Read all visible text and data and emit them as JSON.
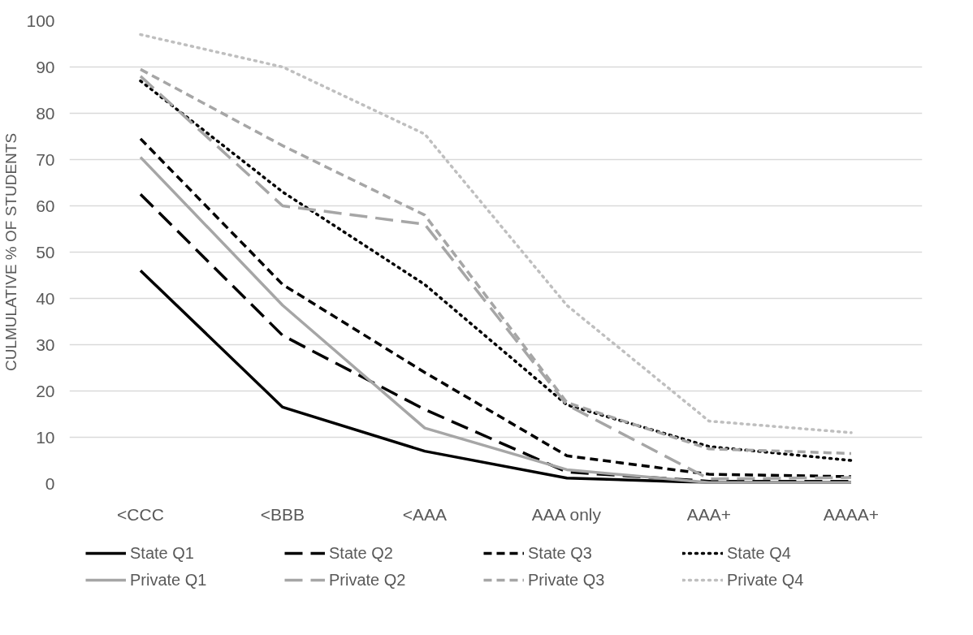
{
  "chart_data": {
    "type": "line",
    "ylabel": "CULMULATIVE % OF STUDENTS",
    "categories": [
      "<CCC",
      "<BBB",
      "<AAA",
      "AAA only",
      "AAA+",
      "AAAA+"
    ],
    "ylim": [
      0,
      100
    ],
    "yticks": [
      0,
      10,
      20,
      30,
      40,
      50,
      60,
      70,
      80,
      90,
      100
    ],
    "grid": "y",
    "legend": "bottom",
    "series": [
      {
        "name": "State Q1",
        "color": "#000000",
        "line_style": "solid",
        "values": [
          46,
          16.5,
          7,
          1.2,
          0.2,
          0.2
        ]
      },
      {
        "name": "State Q2",
        "color": "#000000",
        "line_style": "long_dashed",
        "values": [
          62.5,
          32,
          16,
          2.5,
          0.5,
          0.5
        ]
      },
      {
        "name": "State Q3",
        "color": "#000000",
        "line_style": "dashed",
        "values": [
          74.5,
          43,
          24,
          6,
          2,
          1.5
        ]
      },
      {
        "name": "State Q4",
        "color": "#000000",
        "line_style": "dotted",
        "values": [
          87,
          63,
          43,
          17,
          8,
          5
        ]
      },
      {
        "name": "Private Q1",
        "color": "#a6a6a6",
        "line_style": "solid",
        "values": [
          70.5,
          38.5,
          12,
          3,
          0.2,
          0.2
        ]
      },
      {
        "name": "Private Q2",
        "color": "#a6a6a6",
        "line_style": "long_dashed",
        "values": [
          88,
          60,
          56,
          17,
          1,
          1.3
        ]
      },
      {
        "name": "Private Q3",
        "color": "#a6a6a6",
        "line_style": "dashed",
        "values": [
          89.5,
          73,
          58,
          17.5,
          7.5,
          6.5
        ]
      },
      {
        "name": "Private Q4",
        "color": "#bfbfbf",
        "line_style": "dotted",
        "values": [
          97,
          90,
          75.5,
          38.5,
          13.5,
          11
        ]
      }
    ]
  }
}
